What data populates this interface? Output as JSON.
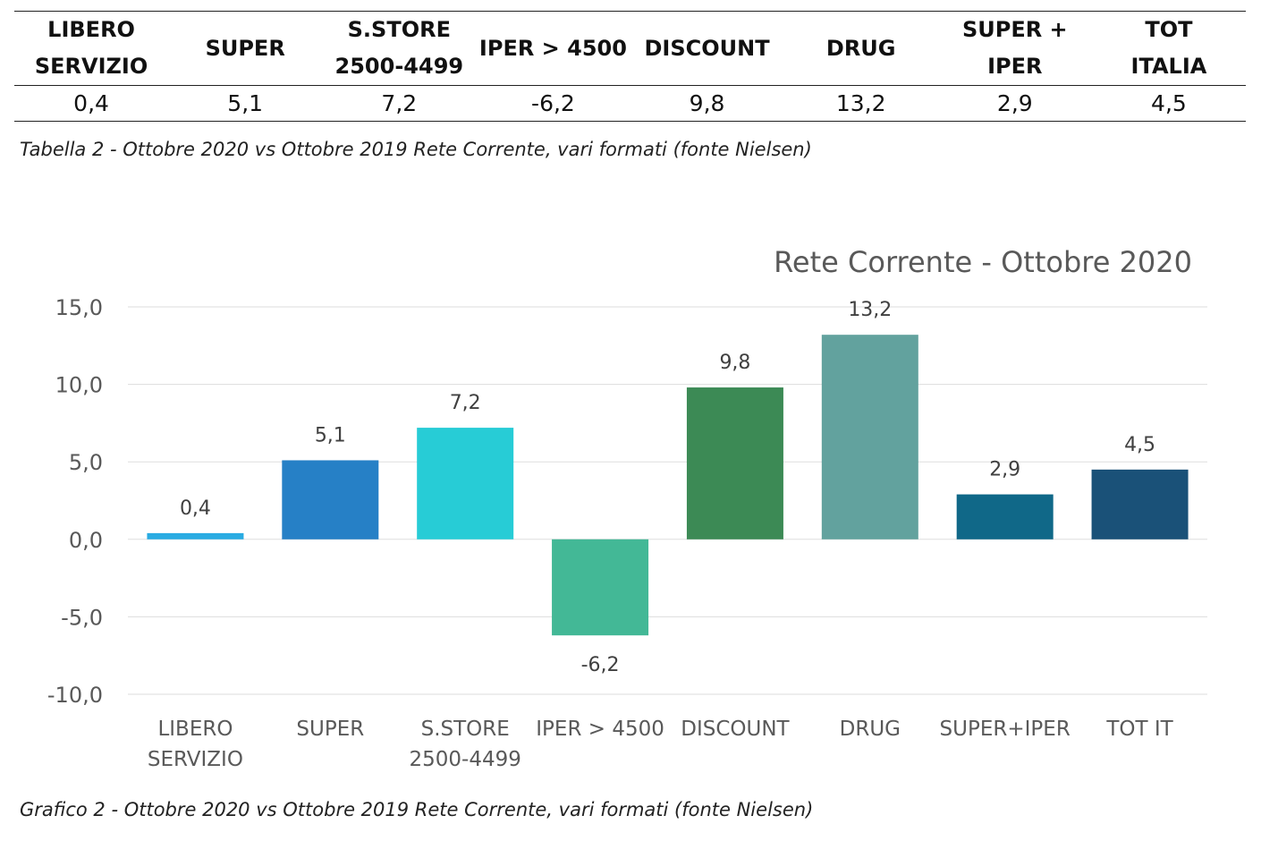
{
  "table": {
    "headers": [
      "LIBERO\nSERVIZIO",
      "SUPER",
      "S.STORE\n2500-4499",
      "IPER > 4500",
      "DISCOUNT",
      "DRUG",
      "SUPER +\nIPER",
      "TOT\nITALIA"
    ],
    "values": [
      "0,4",
      "5,1",
      "7,2",
      "-6,2",
      "9,8",
      "13,2",
      "2,9",
      "4,5"
    ]
  },
  "table_caption": "Tabella 2 - Ottobre 2020 vs Ottobre 2019 Rete Corrente, vari formati (fonte Nielsen)",
  "chart_caption": "Grafico 2 - Ottobre 2020 vs Ottobre 2019 Rete Corrente, vari formati (fonte Nielsen)",
  "chart_data": {
    "type": "bar",
    "title": "Rete Corrente - Ottobre 2020",
    "categories": [
      "LIBERO\nSERVIZIO",
      "SUPER",
      "S.STORE\n2500-4499",
      "IPER > 4500",
      "DISCOUNT",
      "DRUG",
      "SUPER+IPER",
      "TOT IT"
    ],
    "values": [
      0.4,
      5.1,
      7.2,
      -6.2,
      9.8,
      13.2,
      2.9,
      4.5
    ],
    "value_labels": [
      "0,4",
      "5,1",
      "7,2",
      "-6,2",
      "9,8",
      "13,2",
      "2,9",
      "4,5"
    ],
    "colors": [
      "#29abe2",
      "#2680c6",
      "#27ccd6",
      "#43b896",
      "#3c8a55",
      "#62a29e",
      "#106888",
      "#1a5178"
    ],
    "ylim": [
      -10,
      15
    ],
    "yticks": [
      15,
      10,
      5,
      0,
      -5,
      -10
    ],
    "ytick_labels": [
      "15,0",
      "10,0",
      "5,0",
      "0,0",
      "-5,0",
      "-10,0"
    ],
    "grid": true,
    "gridline_color": "#dddddd",
    "xlabel": "",
    "ylabel": ""
  }
}
